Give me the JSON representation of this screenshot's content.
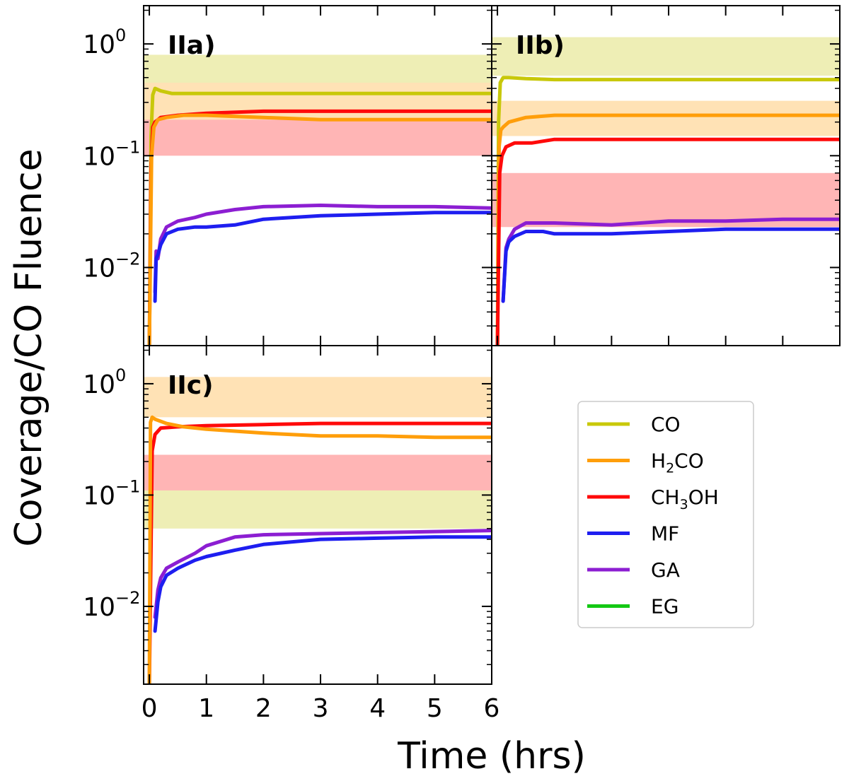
{
  "chart_data": {
    "type": "line",
    "xlabel": "Time (hrs)",
    "ylabel": "Coverage/CO Fluence",
    "yscale": "log",
    "xlim": [
      -0.1,
      6
    ],
    "ylim": [
      0.002,
      2.2
    ],
    "x_ticks": [
      0,
      1,
      2,
      3,
      4,
      5,
      6
    ],
    "y_ticks": [
      {
        "value": 1,
        "base": "10",
        "exp": "0"
      },
      {
        "value": 0.1,
        "base": "10",
        "exp": "−1"
      },
      {
        "value": 0.01,
        "base": "10",
        "exp": "−2"
      }
    ],
    "colors": {
      "CO": "#c8c80a",
      "H2CO": "#ff9e0a",
      "CH3OH": "#ff0a0a",
      "MF": "#1e1ef0",
      "GA": "#8c1ed2",
      "EG": "#14c814"
    },
    "legend": [
      {
        "key": "CO",
        "label": "CO"
      },
      {
        "key": "H2CO",
        "label": "H",
        "sub": "2",
        "rest": "CO"
      },
      {
        "key": "CH3OH",
        "label": "CH",
        "sub": "3",
        "rest": "OH"
      },
      {
        "key": "MF",
        "label": "MF"
      },
      {
        "key": "GA",
        "label": "GA"
      },
      {
        "key": "EG",
        "label": "EG"
      }
    ],
    "panels": [
      {
        "label": "IIa)",
        "bands": [
          {
            "key": "CO",
            "y0": 0.45,
            "y1": 0.8
          },
          {
            "key": "H2CO",
            "y0": 0.21,
            "y1": 0.45
          },
          {
            "key": "CH3OH",
            "y0": 0.1,
            "y1": 0.21
          }
        ],
        "series": [
          {
            "key": "CO",
            "x": [
              0,
              0.03,
              0.06,
              0.1,
              0.2,
              0.4,
              1,
              2,
              3,
              4,
              5,
              6
            ],
            "y": [
              0.002,
              0.15,
              0.35,
              0.4,
              0.38,
              0.36,
              0.36,
              0.36,
              0.36,
              0.36,
              0.36,
              0.36
            ]
          },
          {
            "key": "CH3OH",
            "x": [
              0,
              0.03,
              0.06,
              0.1,
              0.2,
              0.5,
              1,
              2,
              3,
              4,
              5,
              6
            ],
            "y": [
              0.002,
              0.08,
              0.18,
              0.2,
              0.22,
              0.23,
              0.24,
              0.25,
              0.25,
              0.25,
              0.25,
              0.25
            ]
          },
          {
            "key": "H2CO",
            "x": [
              0,
              0.04,
              0.08,
              0.15,
              0.3,
              0.6,
              1,
              2,
              3,
              4,
              5,
              6
            ],
            "y": [
              0.002,
              0.1,
              0.18,
              0.21,
              0.22,
              0.23,
              0.23,
              0.22,
              0.21,
              0.21,
              0.21,
              0.21
            ]
          },
          {
            "key": "GA",
            "x": [
              0.1,
              0.12,
              0.15,
              0.2,
              0.3,
              0.5,
              0.8,
              1,
              1.5,
              2,
              3,
              4,
              5,
              6
            ],
            "y": [
              0.006,
              0.014,
              0.012,
              0.018,
              0.023,
              0.026,
              0.028,
              0.03,
              0.033,
              0.035,
              0.036,
              0.035,
              0.035,
              0.034
            ]
          },
          {
            "key": "MF",
            "x": [
              0.1,
              0.12,
              0.15,
              0.2,
              0.3,
              0.5,
              0.8,
              1,
              1.5,
              2,
              3,
              4,
              5,
              6
            ],
            "y": [
              0.005,
              0.012,
              0.013,
              0.016,
              0.02,
              0.022,
              0.023,
              0.023,
              0.024,
              0.027,
              0.029,
              0.03,
              0.031,
              0.031
            ]
          }
        ]
      },
      {
        "label": "IIb)",
        "bands": [
          {
            "key": "CO",
            "y0": 0.52,
            "y1": 1.15
          },
          {
            "key": "H2CO",
            "y0": 0.15,
            "y1": 0.31
          },
          {
            "key": "CH3OH",
            "y0": 0.023,
            "y1": 0.07
          }
        ],
        "series": [
          {
            "key": "CO",
            "x": [
              0,
              0.02,
              0.05,
              0.1,
              0.2,
              0.5,
              1,
              2,
              3,
              4,
              5,
              6
            ],
            "y": [
              0.002,
              0.2,
              0.45,
              0.5,
              0.5,
              0.49,
              0.48,
              0.48,
              0.48,
              0.48,
              0.48,
              0.48
            ]
          },
          {
            "key": "H2CO",
            "x": [
              0,
              0.03,
              0.06,
              0.1,
              0.2,
              0.5,
              1,
              2,
              3,
              4,
              5,
              6
            ],
            "y": [
              0.002,
              0.12,
              0.17,
              0.18,
              0.2,
              0.22,
              0.23,
              0.23,
              0.23,
              0.23,
              0.23,
              0.23
            ]
          },
          {
            "key": "CH3OH",
            "x": [
              0,
              0.04,
              0.08,
              0.15,
              0.3,
              0.6,
              1,
              2,
              3,
              4,
              5,
              6
            ],
            "y": [
              0.002,
              0.07,
              0.1,
              0.12,
              0.13,
              0.13,
              0.14,
              0.14,
              0.14,
              0.14,
              0.14,
              0.14
            ]
          },
          {
            "key": "GA",
            "x": [
              0.1,
              0.15,
              0.2,
              0.3,
              0.5,
              0.8,
              1,
              2,
              3,
              4,
              5,
              6
            ],
            "y": [
              0.005,
              0.015,
              0.018,
              0.022,
              0.025,
              0.025,
              0.025,
              0.024,
              0.026,
              0.026,
              0.027,
              0.027
            ]
          },
          {
            "key": "MF",
            "x": [
              0.1,
              0.15,
              0.2,
              0.3,
              0.5,
              0.8,
              1,
              2,
              3,
              4,
              5,
              6
            ],
            "y": [
              0.005,
              0.014,
              0.017,
              0.019,
              0.021,
              0.021,
              0.02,
              0.02,
              0.021,
              0.022,
              0.022,
              0.022
            ]
          }
        ]
      },
      {
        "label": "IIc)",
        "bands": [
          {
            "key": "H2CO",
            "y0": 0.5,
            "y1": 1.15
          },
          {
            "key": "CH3OH",
            "y0": 0.11,
            "y1": 0.23
          },
          {
            "key": "CO",
            "y0": 0.05,
            "y1": 0.11
          }
        ],
        "series": [
          {
            "key": "CH3OH",
            "x": [
              0,
              0.05,
              0.1,
              0.2,
              0.5,
              1,
              2,
              3,
              4,
              5,
              6
            ],
            "y": [
              0.002,
              0.25,
              0.35,
              0.4,
              0.41,
              0.42,
              0.43,
              0.44,
              0.44,
              0.44,
              0.44
            ]
          },
          {
            "key": "H2CO",
            "x": [
              0,
              0.02,
              0.05,
              0.1,
              0.3,
              0.6,
              1,
              2,
              3,
              4,
              5,
              6
            ],
            "y": [
              0.002,
              0.45,
              0.5,
              0.48,
              0.44,
              0.41,
              0.39,
              0.36,
              0.34,
              0.34,
              0.33,
              0.33
            ]
          },
          {
            "key": "GA",
            "x": [
              0.1,
              0.15,
              0.2,
              0.3,
              0.5,
              0.8,
              1,
              1.5,
              2,
              3,
              4,
              5,
              6
            ],
            "y": [
              0.008,
              0.014,
              0.018,
              0.022,
              0.025,
              0.03,
              0.035,
              0.042,
              0.044,
              0.045,
              0.046,
              0.047,
              0.048
            ]
          },
          {
            "key": "MF",
            "x": [
              0.1,
              0.15,
              0.2,
              0.3,
              0.5,
              0.8,
              1,
              1.5,
              2,
              3,
              4,
              5,
              6
            ],
            "y": [
              0.006,
              0.011,
              0.015,
              0.019,
              0.022,
              0.026,
              0.028,
              0.032,
              0.036,
              0.04,
              0.041,
              0.042,
              0.042
            ]
          }
        ]
      }
    ]
  }
}
